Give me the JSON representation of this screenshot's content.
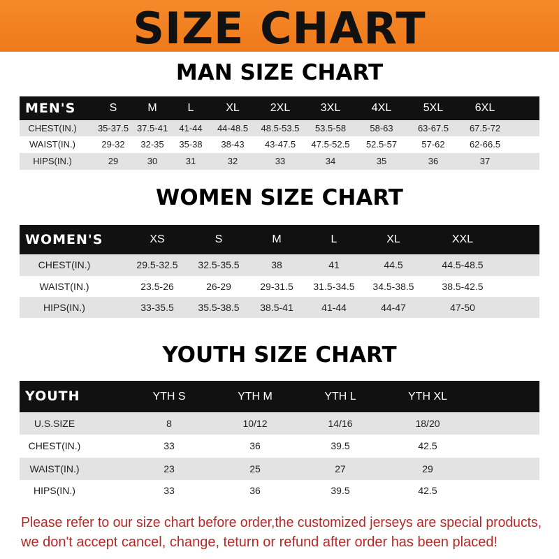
{
  "banner": {
    "title": "SIZE CHART",
    "color": "#f0801f"
  },
  "men": {
    "title": "MAN SIZE CHART",
    "header": [
      "MEN'S",
      "S",
      "M",
      "L",
      "XL",
      "2XL",
      "3XL",
      "4XL",
      "5XL",
      "6XL"
    ],
    "rows": [
      [
        "CHEST(IN.)",
        "35-37.5",
        "37.5-41",
        "41-44",
        "44-48.5",
        "48.5-53.5",
        "53.5-58",
        "58-63",
        "63-67.5",
        "67.5-72"
      ],
      [
        "WAIST(IN.)",
        "29-32",
        "32-35",
        "35-38",
        "38-43",
        "43-47.5",
        "47.5-52.5",
        "52.5-57",
        "57-62",
        "62-66.5"
      ],
      [
        "HIPS(IN.)",
        "29",
        "30",
        "31",
        "32",
        "33",
        "34",
        "35",
        "36",
        "37"
      ]
    ]
  },
  "women": {
    "title": "WOMEN SIZE CHART",
    "header": [
      "WOMEN'S",
      "XS",
      "S",
      "M",
      "L",
      "XL",
      "XXL"
    ],
    "rows": [
      [
        "CHEST(IN.)",
        "29.5-32.5",
        "32.5-35.5",
        "38",
        "41",
        "44.5",
        "44.5-48.5"
      ],
      [
        "WAIST(IN.)",
        "23.5-26",
        "26-29",
        "29-31.5",
        "31.5-34.5",
        "34.5-38.5",
        "38.5-42.5"
      ],
      [
        "HIPS(IN.)",
        "33-35.5",
        "35.5-38.5",
        "38.5-41",
        "41-44",
        "44-47",
        "47-50"
      ]
    ]
  },
  "youth": {
    "title": "YOUTH SIZE CHART",
    "header": [
      "YOUTH",
      "YTH S",
      "YTH M",
      "YTH L",
      "YTH XL"
    ],
    "rows": [
      [
        "U.S.SIZE",
        "8",
        "10/12",
        "14/16",
        "18/20"
      ],
      [
        "CHEST(IN.)",
        "33",
        "36",
        "39.5",
        "42.5"
      ],
      [
        "WAIST(IN.)",
        "23",
        "25",
        "27",
        "29"
      ],
      [
        "HIPS(IN.)",
        "33",
        "36",
        "39.5",
        "42.5"
      ]
    ]
  },
  "notice": {
    "line1": "Please refer to our size chart before order,the customized jerseys are special products,",
    "line2": "we don't accept cancel, change, teturn or refund after order has been placed!",
    "color": "#b82828"
  }
}
